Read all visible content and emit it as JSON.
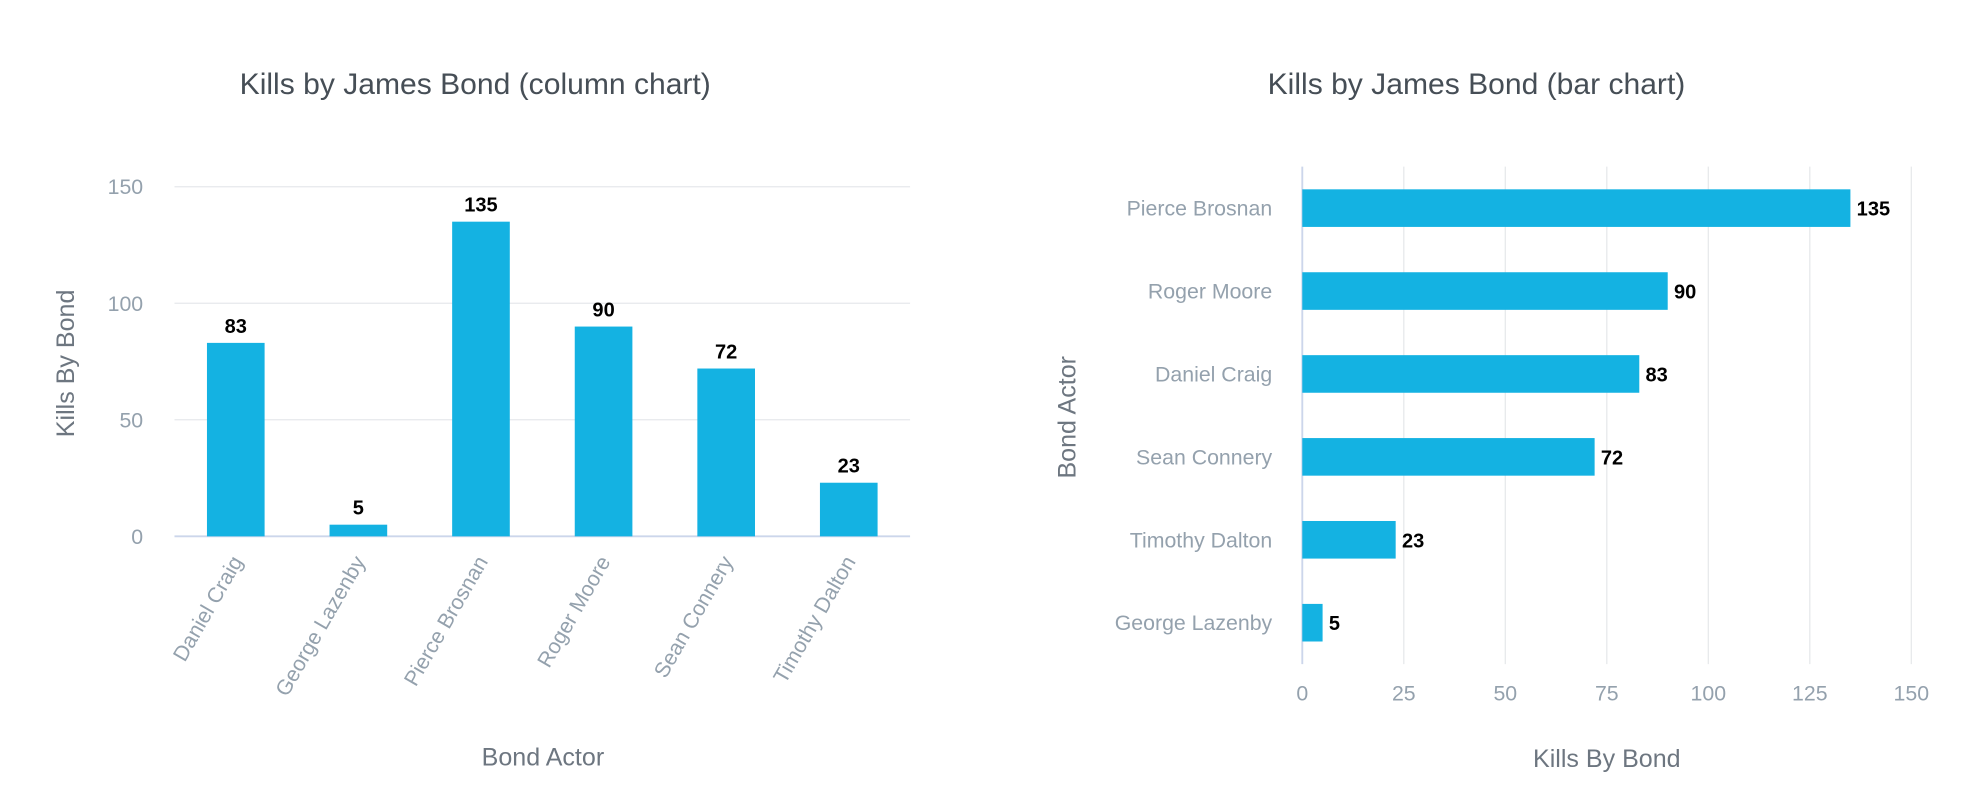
{
  "bar_color": "#14b2e2",
  "chart_data": [
    {
      "type": "bar",
      "orientation": "vertical",
      "title": "Kills by James Bond (column chart)",
      "xlabel": "Bond Actor",
      "ylabel": "Kills By Bond",
      "categories": [
        "Daniel Craig",
        "George Lazenby",
        "Pierce Brosnan",
        "Roger Moore",
        "Sean Connery",
        "Timothy Dalton"
      ],
      "values": [
        83,
        5,
        135,
        90,
        72,
        23
      ],
      "ylim": [
        0,
        150
      ],
      "yticks": [
        "0",
        "50",
        "100",
        "150"
      ],
      "grid": true,
      "data_labels": true
    },
    {
      "type": "bar",
      "orientation": "horizontal",
      "title": "Kills by James Bond (bar chart)",
      "xlabel": "Kills By Bond",
      "ylabel": "Bond Actor",
      "categories": [
        "Pierce Brosnan",
        "Roger Moore",
        "Daniel Craig",
        "Sean Connery",
        "Timothy Dalton",
        "George Lazenby"
      ],
      "values": [
        135,
        90,
        83,
        72,
        23,
        5
      ],
      "xlim": [
        0,
        150
      ],
      "xticks": [
        "0",
        "25",
        "50",
        "75",
        "100",
        "125",
        "150"
      ],
      "grid": true,
      "data_labels": true
    }
  ]
}
